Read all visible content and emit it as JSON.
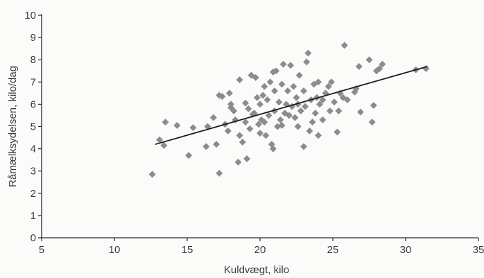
{
  "chart_data": {
    "type": "scatter",
    "title": "",
    "xlabel": "Kuldvægt, kilo",
    "ylabel": "Råmælksydelsen, kilo/dag",
    "xlim": [
      5,
      35
    ],
    "ylim": [
      0,
      10
    ],
    "x_ticks": [
      "5",
      "10",
      "15",
      "20",
      "25",
      "30",
      "35"
    ],
    "y_ticks": [
      "0",
      "1",
      "2",
      "3",
      "4",
      "5",
      "6",
      "7",
      "8",
      "9",
      "10"
    ],
    "grid": false,
    "legend": "none",
    "marker": "diamond",
    "point_color": "#8c8c8c",
    "trendline": {
      "x": [
        12.8,
        31.5
      ],
      "y": [
        4.2,
        7.7
      ]
    },
    "points": [
      {
        "x": 12.6,
        "y": 2.85
      },
      {
        "x": 13.1,
        "y": 4.4
      },
      {
        "x": 13.4,
        "y": 4.15
      },
      {
        "x": 13.5,
        "y": 5.2
      },
      {
        "x": 14.3,
        "y": 5.05
      },
      {
        "x": 15.1,
        "y": 3.7
      },
      {
        "x": 15.4,
        "y": 4.95
      },
      {
        "x": 16.3,
        "y": 4.1
      },
      {
        "x": 16.4,
        "y": 5.0
      },
      {
        "x": 16.8,
        "y": 5.4
      },
      {
        "x": 17.0,
        "y": 4.2
      },
      {
        "x": 17.2,
        "y": 2.9
      },
      {
        "x": 17.2,
        "y": 6.4
      },
      {
        "x": 17.4,
        "y": 6.35
      },
      {
        "x": 17.6,
        "y": 5.1
      },
      {
        "x": 17.8,
        "y": 4.8
      },
      {
        "x": 17.9,
        "y": 6.5
      },
      {
        "x": 18.0,
        "y": 6.0
      },
      {
        "x": 18.2,
        "y": 5.7
      },
      {
        "x": 18.3,
        "y": 5.3
      },
      {
        "x": 18.5,
        "y": 3.4
      },
      {
        "x": 18.6,
        "y": 7.1
      },
      {
        "x": 18.6,
        "y": 4.6
      },
      {
        "x": 18.8,
        "y": 4.3
      },
      {
        "x": 19.0,
        "y": 5.2
      },
      {
        "x": 19.1,
        "y": 3.55
      },
      {
        "x": 19.2,
        "y": 5.8
      },
      {
        "x": 19.3,
        "y": 4.9
      },
      {
        "x": 19.4,
        "y": 7.3
      },
      {
        "x": 19.5,
        "y": 5.55
      },
      {
        "x": 19.6,
        "y": 5.6
      },
      {
        "x": 19.8,
        "y": 6.3
      },
      {
        "x": 19.9,
        "y": 5.1
      },
      {
        "x": 20.0,
        "y": 6.0
      },
      {
        "x": 20.0,
        "y": 4.7
      },
      {
        "x": 20.1,
        "y": 5.3
      },
      {
        "x": 20.2,
        "y": 6.4
      },
      {
        "x": 20.3,
        "y": 5.2
      },
      {
        "x": 20.4,
        "y": 4.6
      },
      {
        "x": 20.5,
        "y": 6.2
      },
      {
        "x": 20.6,
        "y": 5.5
      },
      {
        "x": 20.7,
        "y": 7.0
      },
      {
        "x": 20.8,
        "y": 4.2
      },
      {
        "x": 20.9,
        "y": 4.0
      },
      {
        "x": 21.0,
        "y": 5.7
      },
      {
        "x": 21.0,
        "y": 6.6
      },
      {
        "x": 21.1,
        "y": 7.5
      },
      {
        "x": 21.2,
        "y": 5.0
      },
      {
        "x": 21.3,
        "y": 6.1
      },
      {
        "x": 21.4,
        "y": 5.3
      },
      {
        "x": 21.5,
        "y": 6.9
      },
      {
        "x": 21.6,
        "y": 7.8
      },
      {
        "x": 21.7,
        "y": 5.6
      },
      {
        "x": 21.8,
        "y": 6.0
      },
      {
        "x": 21.9,
        "y": 6.6
      },
      {
        "x": 22.0,
        "y": 5.5
      },
      {
        "x": 22.1,
        "y": 7.75
      },
      {
        "x": 22.2,
        "y": 5.9
      },
      {
        "x": 22.3,
        "y": 6.8
      },
      {
        "x": 22.4,
        "y": 5.4
      },
      {
        "x": 22.5,
        "y": 6.3
      },
      {
        "x": 22.6,
        "y": 6.0
      },
      {
        "x": 22.7,
        "y": 7.3
      },
      {
        "x": 22.8,
        "y": 5.7
      },
      {
        "x": 23.0,
        "y": 6.6
      },
      {
        "x": 23.1,
        "y": 5.9
      },
      {
        "x": 23.2,
        "y": 7.9
      },
      {
        "x": 23.3,
        "y": 8.3
      },
      {
        "x": 23.4,
        "y": 4.8
      },
      {
        "x": 23.5,
        "y": 6.2
      },
      {
        "x": 23.6,
        "y": 5.2
      },
      {
        "x": 23.7,
        "y": 6.9
      },
      {
        "x": 23.8,
        "y": 5.6
      },
      {
        "x": 23.9,
        "y": 6.3
      },
      {
        "x": 24.0,
        "y": 7.0
      },
      {
        "x": 24.1,
        "y": 6.0
      },
      {
        "x": 24.3,
        "y": 5.3
      },
      {
        "x": 24.5,
        "y": 6.5
      },
      {
        "x": 24.7,
        "y": 6.8
      },
      {
        "x": 24.8,
        "y": 5.7
      },
      {
        "x": 24.9,
        "y": 7.0
      },
      {
        "x": 25.1,
        "y": 6.1
      },
      {
        "x": 25.3,
        "y": 4.75
      },
      {
        "x": 25.4,
        "y": 5.7
      },
      {
        "x": 25.5,
        "y": 6.5
      },
      {
        "x": 25.7,
        "y": 6.3
      },
      {
        "x": 25.8,
        "y": 8.65
      },
      {
        "x": 26.0,
        "y": 6.2
      },
      {
        "x": 23.0,
        "y": 4.1
      },
      {
        "x": 24.0,
        "y": 4.6
      },
      {
        "x": 26.6,
        "y": 6.7
      },
      {
        "x": 26.8,
        "y": 7.7
      },
      {
        "x": 26.9,
        "y": 5.65
      },
      {
        "x": 27.5,
        "y": 8.0
      },
      {
        "x": 27.7,
        "y": 5.2
      },
      {
        "x": 27.8,
        "y": 5.95
      },
      {
        "x": 28.0,
        "y": 7.5
      },
      {
        "x": 28.2,
        "y": 7.6
      },
      {
        "x": 28.4,
        "y": 7.8
      },
      {
        "x": 30.7,
        "y": 7.55
      },
      {
        "x": 31.4,
        "y": 7.6
      },
      {
        "x": 19.7,
        "y": 7.2
      },
      {
        "x": 20.9,
        "y": 7.45
      },
      {
        "x": 22.6,
        "y": 5.0
      },
      {
        "x": 18.0,
        "y": 5.85
      },
      {
        "x": 26.5,
        "y": 6.55
      },
      {
        "x": 21.5,
        "y": 5.05
      },
      {
        "x": 20.3,
        "y": 6.8
      },
      {
        "x": 24.3,
        "y": 6.2
      },
      {
        "x": 19.0,
        "y": 6.05
      }
    ]
  }
}
